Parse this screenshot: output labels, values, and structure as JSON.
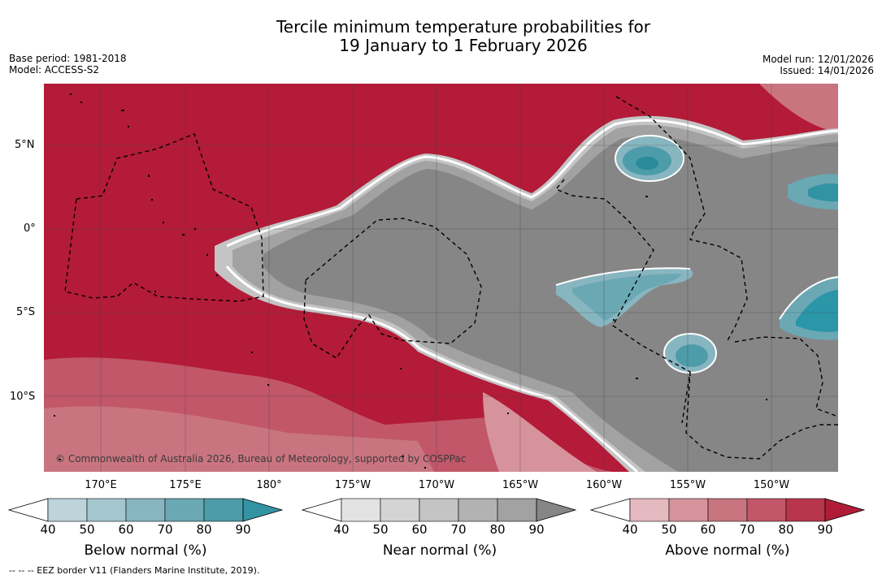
{
  "title": {
    "line1": "Tercile minimum temperature probabilities for",
    "line2": "19 January to 1 February 2026"
  },
  "meta": {
    "base_period": "Base period: 1981-2018",
    "model": "Model: ACCESS-S2",
    "model_run": "Model run: 12/01/2026",
    "issued": "Issued: 14/01/2026"
  },
  "map": {
    "lat_labels": [
      "5°N",
      "0°",
      "5°S",
      "10°S"
    ],
    "lon_labels": [
      "170°E",
      "175°E",
      "180°",
      "175°W",
      "170°W",
      "165°W",
      "160°W",
      "155°W",
      "150°W"
    ],
    "copyright": "© Commonwealth of Australia 2026, Bureau of Meteorology, supported by COSPPac",
    "colors": {
      "above_dark": "#b31b38",
      "near_dark": "#868686",
      "below_dark": "#2a96a8"
    }
  },
  "colorbars": {
    "ticks": [
      "40",
      "50",
      "60",
      "70",
      "80",
      "90"
    ],
    "below": {
      "label": "Below normal (%)",
      "colors": [
        "#bcd4da",
        "#a4c7cd",
        "#88b6c0",
        "#6aa8b4",
        "#4d9ca9",
        "#3293a3"
      ]
    },
    "near": {
      "label": "Near normal (%)",
      "colors": [
        "#e3e3e3",
        "#d4d4d4",
        "#c4c4c4",
        "#b2b2b2",
        "#a2a2a2",
        "#868686"
      ]
    },
    "above": {
      "label": "Above normal (%)",
      "colors": [
        "#e4b9bf",
        "#d6939c",
        "#c97580",
        "#c25769",
        "#b8364c",
        "#b01c37"
      ]
    }
  },
  "footnote": "-- -- -- EEZ border V11 (Flanders Marine Institute, 2019)."
}
